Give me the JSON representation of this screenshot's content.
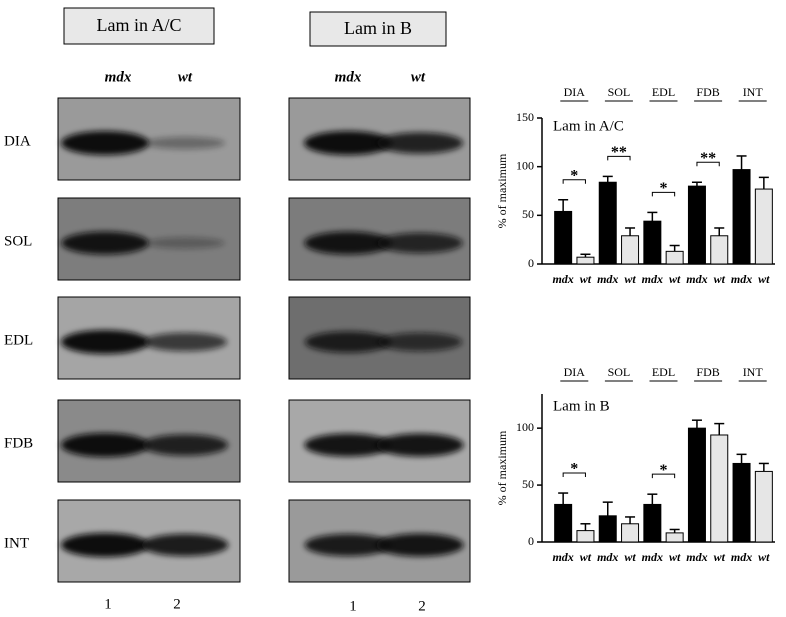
{
  "panels": [
    {
      "title": "Lam in A/C",
      "columns": [
        "mdx",
        "wt"
      ],
      "lanes": [
        "1",
        "2"
      ]
    },
    {
      "title": "Lam in B",
      "columns": [
        "mdx",
        "wt"
      ],
      "lanes": [
        "1",
        "2"
      ]
    }
  ],
  "rows": [
    "DIA",
    "SOL",
    "EDL",
    "FDB",
    "INT"
  ],
  "chart_data": [
    {
      "type": "bar",
      "title": "Lam in A/C",
      "y_label": "% of maximum",
      "groups": [
        "DIA",
        "SOL",
        "EDL",
        "FDB",
        "INT"
      ],
      "categories": [
        "mdx",
        "wt",
        "mdx",
        "wt",
        "mdx",
        "wt",
        "mdx",
        "wt",
        "mdx",
        "wt"
      ],
      "values": [
        54,
        7,
        84,
        29,
        44,
        13,
        80,
        29,
        97,
        77
      ],
      "errors": [
        12,
        3,
        6,
        8,
        9,
        6,
        4,
        8,
        14,
        12
      ],
      "significance": [
        "*",
        "**",
        "*",
        "**",
        null
      ],
      "bar_colors": [
        "#000000",
        "#e6e6e6"
      ],
      "ylim": [
        0,
        150
      ],
      "yticks": [
        0,
        50,
        100,
        150
      ]
    },
    {
      "type": "bar",
      "title": "Lam in B",
      "y_label": "% of maximum",
      "groups": [
        "DIA",
        "SOL",
        "EDL",
        "FDB",
        "INT"
      ],
      "categories": [
        "mdx",
        "wt",
        "mdx",
        "wt",
        "mdx",
        "wt",
        "mdx",
        "wt",
        "mdx",
        "wt"
      ],
      "values": [
        33,
        10,
        23,
        16,
        33,
        8,
        100,
        94,
        69,
        62
      ],
      "errors": [
        10,
        6,
        12,
        6,
        9,
        3,
        7,
        10,
        8,
        7
      ],
      "significance": [
        "*",
        null,
        "*",
        null,
        null
      ],
      "bar_colors": [
        "#000000",
        "#e6e6e6"
      ],
      "ylim": [
        0,
        130
      ],
      "yticks": [
        0,
        50,
        100
      ]
    }
  ]
}
